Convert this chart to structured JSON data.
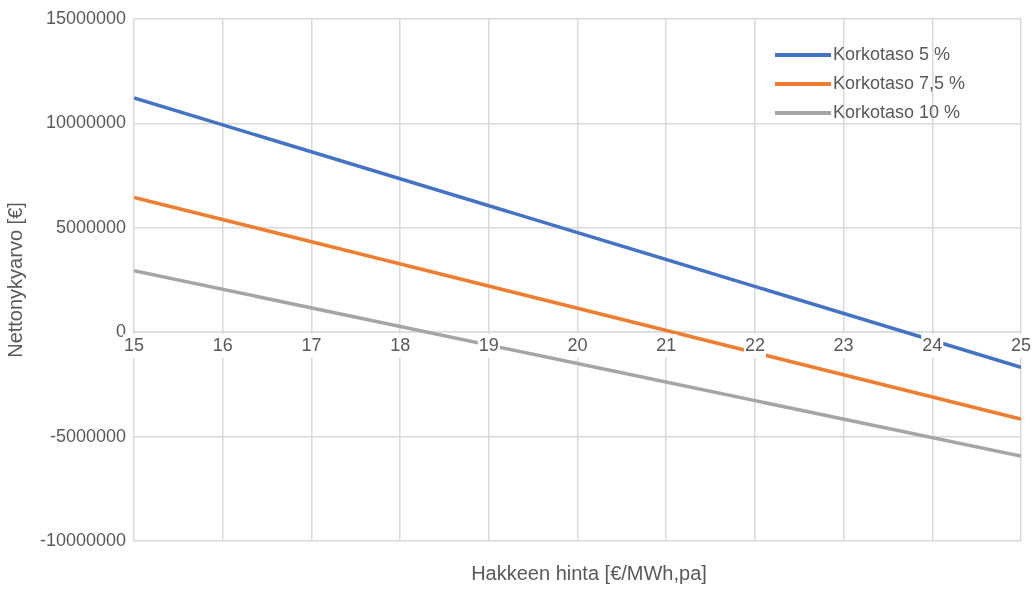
{
  "chart_data": {
    "type": "line",
    "xlabel": "Hakkeen hinta [€/MWh,pa]",
    "ylabel": "Nettonykyarvo [€]",
    "x": [
      15,
      20,
      25
    ],
    "series": [
      {
        "name": "Korkotaso 5 %",
        "color": "#4472c4",
        "values": [
          11210000,
          4770000,
          -1680000
        ]
      },
      {
        "name": "Korkotaso 7,5 %",
        "color": "#ed7d31",
        "values": [
          6450000,
          1150000,
          -4160000
        ]
      },
      {
        "name": "Korkotaso 10 %",
        "color": "#a5a5a5",
        "values": [
          2940000,
          -1500000,
          -5930000
        ]
      }
    ],
    "xlim": [
      15,
      25
    ],
    "xticks": [
      15,
      16,
      17,
      18,
      19,
      20,
      21,
      22,
      23,
      24,
      25
    ],
    "ylim": [
      -10000000,
      15000000
    ],
    "yticks": [
      -10000000,
      -5000000,
      0,
      5000000,
      10000000,
      15000000
    ],
    "grid": true,
    "legend": "top right",
    "marker": "none",
    "line_style": "solid"
  }
}
